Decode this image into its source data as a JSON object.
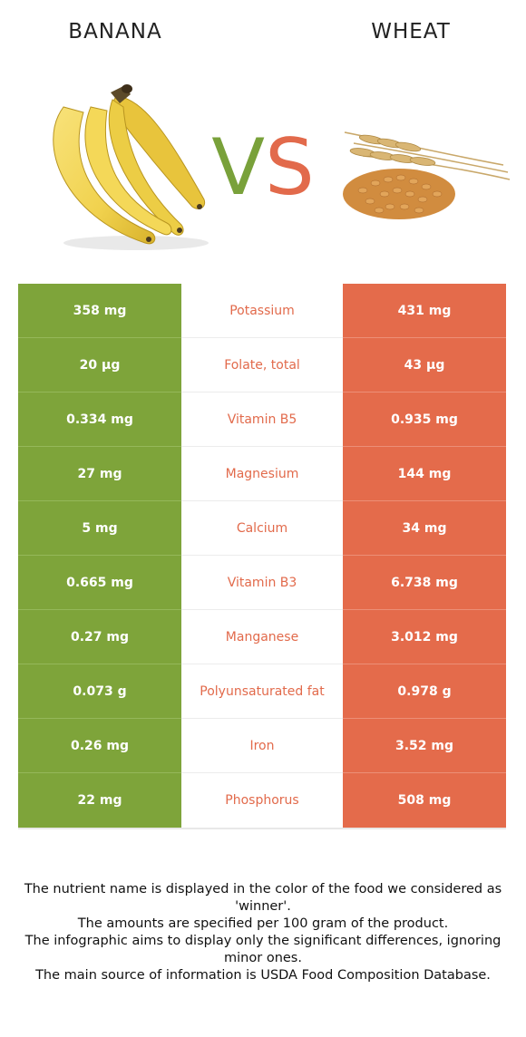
{
  "header": {
    "left_food": "BANANA",
    "right_food": "WHEAT",
    "vs_v": "V",
    "vs_s": "S"
  },
  "colors": {
    "left_winner": "#7ea43a",
    "right_winner": "#e46b4b"
  },
  "images": {
    "left": "banana-bunch-illustration",
    "right": "wheat-grain-illustration"
  },
  "rows": [
    {
      "left": "358 mg",
      "nutrient": "Potassium",
      "right": "431 mg"
    },
    {
      "left": "20 µg",
      "nutrient": "Folate, total",
      "right": "43 µg"
    },
    {
      "left": "0.334 mg",
      "nutrient": "Vitamin B5",
      "right": "0.935 mg"
    },
    {
      "left": "27 mg",
      "nutrient": "Magnesium",
      "right": "144 mg"
    },
    {
      "left": "5 mg",
      "nutrient": "Calcium",
      "right": "34 mg"
    },
    {
      "left": "0.665 mg",
      "nutrient": "Vitamin B3",
      "right": "6.738 mg"
    },
    {
      "left": "0.27 mg",
      "nutrient": "Manganese",
      "right": "3.012 mg"
    },
    {
      "left": "0.073 g",
      "nutrient": "Polyunsaturated fat",
      "right": "0.978 g"
    },
    {
      "left": "0.26 mg",
      "nutrient": "Iron",
      "right": "3.52 mg"
    },
    {
      "left": "22 mg",
      "nutrient": "Phosphorus",
      "right": "508 mg"
    }
  ],
  "footnote": {
    "line1": "The nutrient name is displayed in the color of the food we considered as 'winner'.",
    "line2": "The amounts are specified per 100 gram of the product.",
    "line3": "The infographic aims to display only the significant differences, ignoring minor ones.",
    "line4": "The main source of information is USDA Food Composition Database."
  }
}
